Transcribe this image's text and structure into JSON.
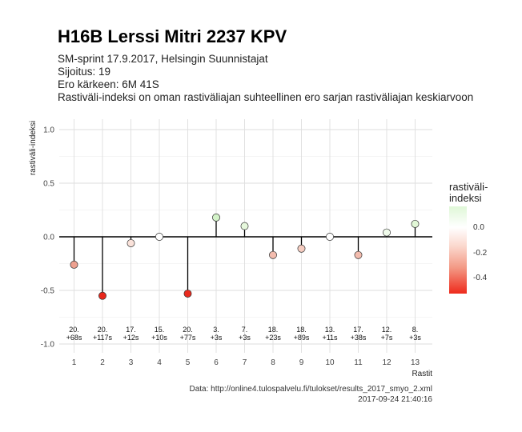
{
  "title": "H16B Lerssi Mitri 2237 KPV",
  "subtitle_lines": [
    "SM-sprint 17.9.2017, Helsingin Suunnistajat",
    "Sijoitus: 19",
    "Ero kärkeen: 6M 41S",
    "Rastiväli-indeksi on oman rastiväliajan suhteellinen ero sarjan rastiväliajan keskiarvoon"
  ],
  "caption": {
    "source": "Data: http://online4.tulospalvelu.fi/tulokset/results_2017_smyo_2.xml",
    "timestamp": "2017-09-24 21:40:16"
  },
  "legend": {
    "title": "rastiväli-\nindeksi",
    "ticks": [
      "0.0",
      "-0.2",
      "-0.4"
    ]
  },
  "chart_data": {
    "type": "lollipop",
    "xlabel": "Rastit",
    "ylabel": "rastiväli-indeksi",
    "ylim": [
      -1.0,
      1.0
    ],
    "yticks": [
      "1.0",
      "0.5",
      "0.0",
      "-0.5",
      "-1.0"
    ],
    "xticks": [
      "1",
      "2",
      "3",
      "4",
      "5",
      "6",
      "7",
      "8",
      "9",
      "10",
      "11",
      "12",
      "13"
    ],
    "grid": true,
    "points": [
      {
        "x": 1,
        "y": -0.26,
        "rank": "20.",
        "diff": "+68s",
        "color": "#eda08f"
      },
      {
        "x": 2,
        "y": -0.55,
        "rank": "20.",
        "diff": "+117s",
        "color": "#e8261b"
      },
      {
        "x": 3,
        "y": -0.06,
        "rank": "17.",
        "diff": "+12s",
        "color": "#fae2da"
      },
      {
        "x": 4,
        "y": 0.0,
        "rank": "15.",
        "diff": "+10s",
        "color": "#ffffff"
      },
      {
        "x": 5,
        "y": -0.53,
        "rank": "20.",
        "diff": "+77s",
        "color": "#e92a1e"
      },
      {
        "x": 6,
        "y": 0.18,
        "rank": "3.",
        "diff": "+3s",
        "color": "#d3f3c8"
      },
      {
        "x": 7,
        "y": 0.1,
        "rank": "7.",
        "diff": "+3s",
        "color": "#e6f8dc"
      },
      {
        "x": 8,
        "y": -0.17,
        "rank": "18.",
        "diff": "+23s",
        "color": "#f3bcae"
      },
      {
        "x": 9,
        "y": -0.11,
        "rank": "18.",
        "diff": "+89s",
        "color": "#f6cdc1"
      },
      {
        "x": 10,
        "y": 0.0,
        "rank": "13.",
        "diff": "+11s",
        "color": "#ffffff"
      },
      {
        "x": 11,
        "y": -0.17,
        "rank": "17.",
        "diff": "+38s",
        "color": "#f3bcae"
      },
      {
        "x": 12,
        "y": 0.04,
        "rank": "12.",
        "diff": "+7s",
        "color": "#f0fbeb"
      },
      {
        "x": 13,
        "y": 0.12,
        "rank": "8.",
        "diff": "+3s",
        "color": "#e1f7d6"
      }
    ]
  }
}
